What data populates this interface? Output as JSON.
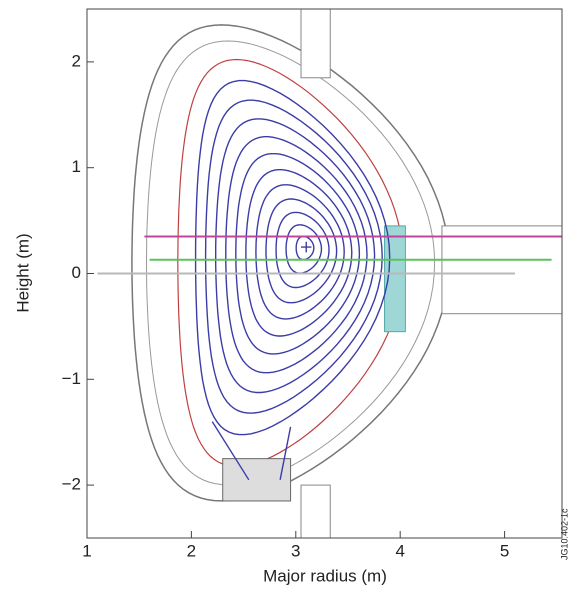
{
  "chart_data": {
    "type": "line",
    "xlabel": "Major radius (m)",
    "ylabel": "Height (m)",
    "annotation": "JG10.402-1c",
    "xlim": [
      1,
      5.55
    ],
    "ylim": [
      -2.5,
      2.5
    ],
    "xticks": [
      1,
      2,
      3,
      4,
      5
    ],
    "yticks": [
      {
        "value": -2,
        "label": "−2"
      },
      {
        "value": -1,
        "label": "−1"
      },
      0,
      1,
      2
    ],
    "series": [
      {
        "color": "#c0449c",
        "x": [
          1.55,
          5.55
        ],
        "values": [
          0.35,
          0.35
        ]
      },
      {
        "color": "#5cc05c",
        "x": [
          1.6,
          5.45
        ],
        "values": [
          0.13,
          0.13
        ]
      },
      {
        "color": "#b8b8b8",
        "x": [
          1.1,
          5.1
        ],
        "values": [
          0.0,
          0.0
        ]
      }
    ]
  }
}
